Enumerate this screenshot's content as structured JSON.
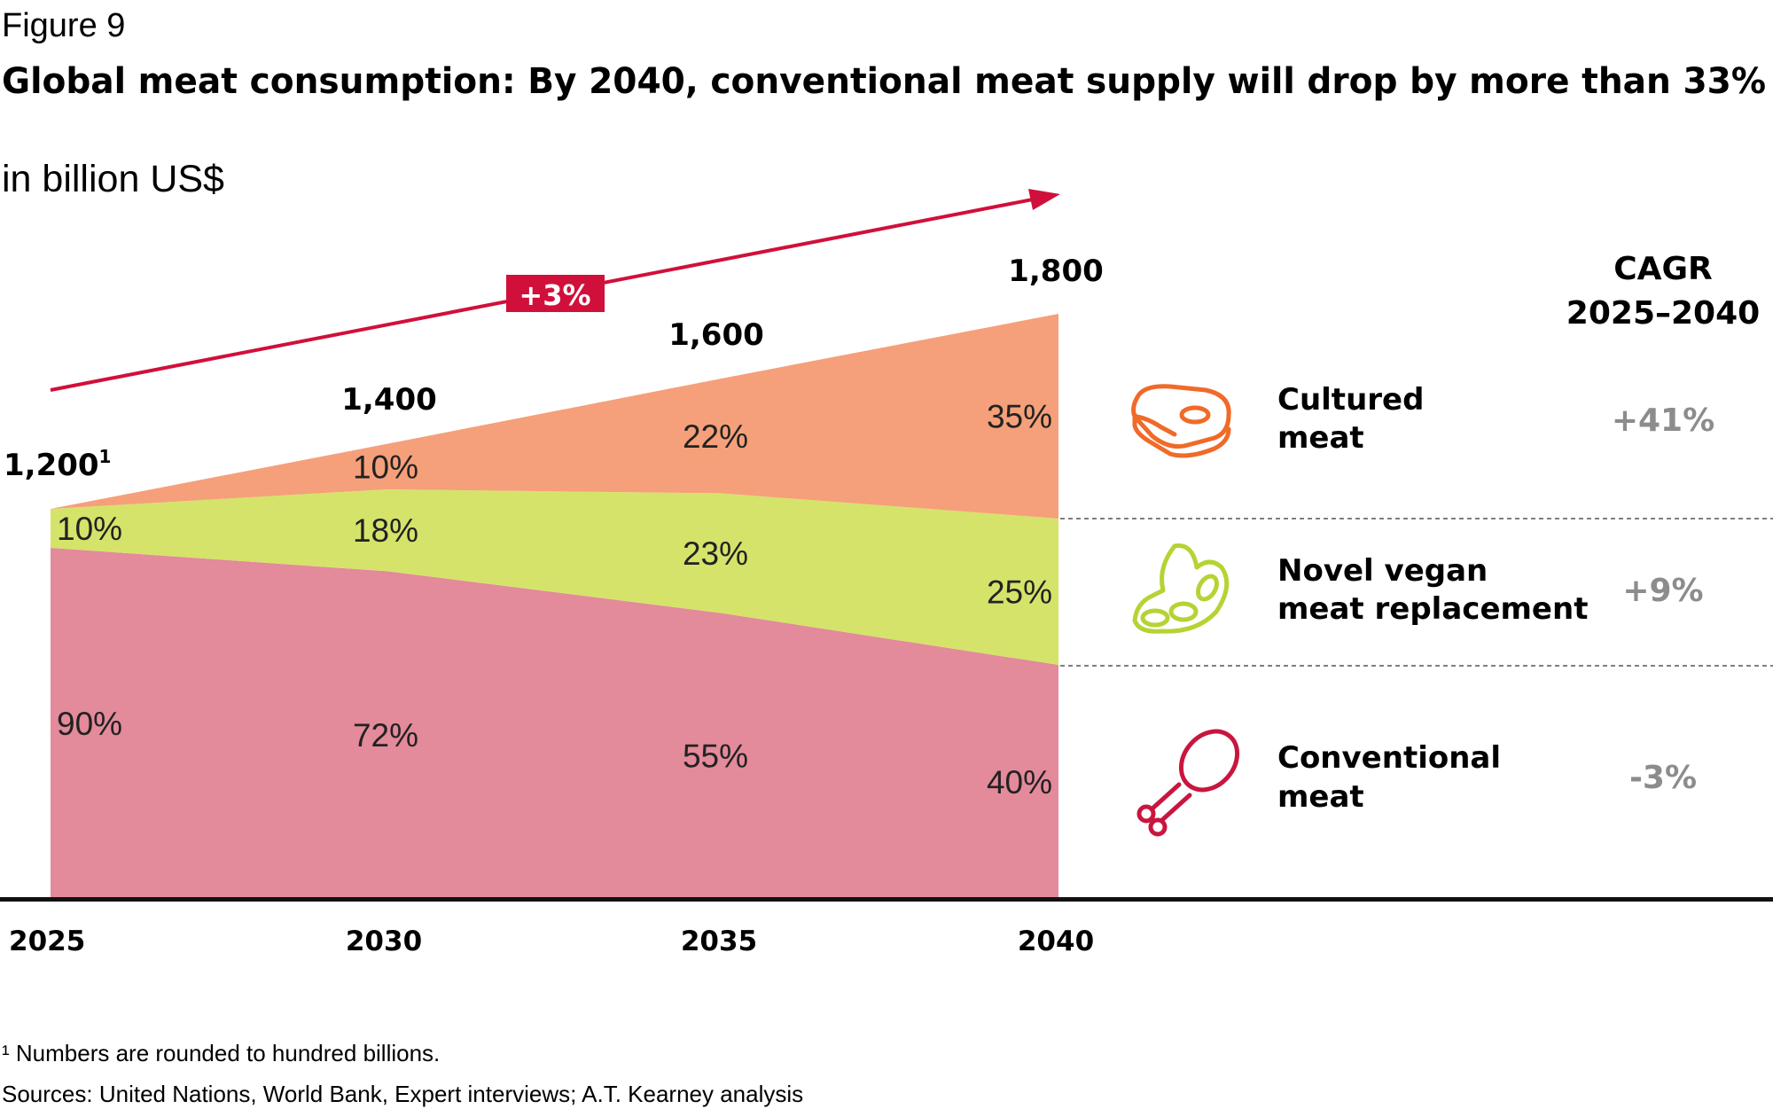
{
  "header": {
    "figure_label": "Figure 9",
    "title": "Global meat consumption: By 2040, conventional meat supply will drop by more than 33%",
    "unit": "in billion US$"
  },
  "chart_data": {
    "type": "area",
    "stacked": true,
    "categories": [
      "2025",
      "2030",
      "2035",
      "2040"
    ],
    "totals": [
      1200,
      1400,
      1600,
      1800
    ],
    "total_labels": [
      "1,200",
      "1,400",
      "1,600",
      "1,800"
    ],
    "total_footnote_marker": "1",
    "growth_label": "+3%",
    "series": [
      {
        "name": "Conventional meat",
        "values_pct": [
          90,
          72,
          55,
          40
        ],
        "labels": [
          "90%",
          "72%",
          "55%",
          "40%"
        ],
        "color": "#e38a9b",
        "icon": "chicken-leg-icon",
        "icon_color": "#c8163e",
        "cagr": "-3%"
      },
      {
        "name": "Novel vegan meat replacement",
        "values_pct": [
          10,
          18,
          23,
          25
        ],
        "labels": [
          "10%",
          "18%",
          "23%",
          "25%"
        ],
        "color": "#d5e36a",
        "icon": "soybean-pod-icon",
        "icon_color": "#b5d334",
        "cagr": "+9%"
      },
      {
        "name": "Cultured meat",
        "values_pct": [
          0,
          10,
          22,
          35
        ],
        "labels": [
          "",
          "10%",
          "22%",
          "35%"
        ],
        "color": "#f5a07a",
        "icon": "steak-icon",
        "icon_color": "#f06a28",
        "cagr": "+41%"
      }
    ],
    "ylim": [
      0,
      1800
    ],
    "grid": false,
    "accent_color": "#d0103a"
  },
  "legend": {
    "cagr_header_line1": "CAGR",
    "cagr_header_line2": "2025–2040",
    "items": [
      {
        "line1": "Cultured",
        "line2": "meat",
        "cagr": "+41%"
      },
      {
        "line1": "Novel vegan",
        "line2": "meat replacement",
        "cagr": "+9%"
      },
      {
        "line1": "Conventional",
        "line2": "meat",
        "cagr": "-3%"
      }
    ]
  },
  "footer": {
    "footnote": "¹ Numbers are rounded to hundred billions.",
    "sources": "Sources: United Nations, World Bank, Expert interviews; A.T. Kearney analysis"
  }
}
